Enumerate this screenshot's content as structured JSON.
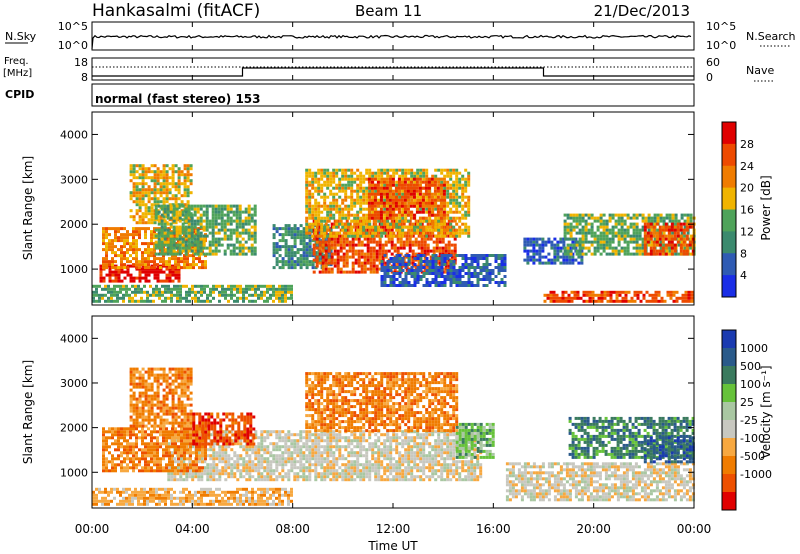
{
  "header": {
    "station": "Hankasalmi (fitACF)",
    "beam": "Beam 11",
    "date": "21/Dec/2013"
  },
  "colors": {
    "power": [
      "#1a2ee6",
      "#2f5bb3",
      "#3b8a6e",
      "#4fa35a",
      "#f0b400",
      "#f07c00",
      "#ee4a00",
      "#e00000"
    ],
    "velocity": [
      "#e00000",
      "#ee5000",
      "#f07c00",
      "#f7a840",
      "#c8c8c0",
      "#a9c7a2",
      "#66c23a",
      "#3a7a5e",
      "#2a5a8a",
      "#1a3ab0"
    ]
  },
  "chart_data": [
    {
      "type": "line",
      "name": "noise",
      "left_label": "N.Sky",
      "right_label": "N.Search",
      "left_ticks": [
        "10^5",
        "10^0"
      ],
      "right_ticks": [
        "10^5",
        "10^0"
      ],
      "series": [
        {
          "name": "N.Sky",
          "style": "solid"
        },
        {
          "name": "N.Search",
          "style": "dotted"
        }
      ],
      "x_range": [
        "00:00",
        "24:00"
      ]
    },
    {
      "type": "line",
      "name": "frequency-nave",
      "left_label_1": "Freq.",
      "left_label_2": "[MHz]",
      "right_label": "Nave",
      "left_ticks": [
        "18",
        "8"
      ],
      "right_ticks": [
        "60",
        "0"
      ],
      "cpid_label": "CPID",
      "cpid_text": "normal (fast stereo) 153",
      "frequency_steps": [
        {
          "from": 0.0,
          "to": 6.0,
          "level": "low"
        },
        {
          "from": 6.0,
          "to": 18.0,
          "level": "high"
        },
        {
          "from": 18.0,
          "to": 24.0,
          "level": "low"
        }
      ]
    },
    {
      "type": "heatmap",
      "name": "power",
      "ylabel": "Slant Range [km]",
      "yticks": [
        "4000",
        "3000",
        "2000",
        "1000"
      ],
      "ylim": [
        200,
        4500
      ],
      "xlim": [
        0,
        24
      ],
      "colorbar_label": "Power [dB]",
      "colorbar_ticks": [
        "28",
        "24",
        "20",
        "16",
        "12",
        "8",
        "4"
      ],
      "regions": [
        {
          "t0": 0.3,
          "t1": 3.5,
          "r0": 700,
          "r1": 1100,
          "level": 7
        },
        {
          "t0": 0.4,
          "t1": 4.5,
          "r0": 1000,
          "r1": 1900,
          "level": 5
        },
        {
          "t0": 1.5,
          "t1": 4.0,
          "r0": 2000,
          "r1": 3300,
          "level": 4
        },
        {
          "t0": 2.5,
          "t1": 6.5,
          "r0": 1300,
          "r1": 2400,
          "level": 3
        },
        {
          "t0": 7.2,
          "t1": 9.5,
          "r0": 1000,
          "r1": 2000,
          "level": 2
        },
        {
          "t0": 8.8,
          "t1": 14.5,
          "r0": 900,
          "r1": 2100,
          "level": 6
        },
        {
          "t0": 8.5,
          "t1": 15.0,
          "r0": 1700,
          "r1": 3200,
          "level": 4
        },
        {
          "t0": 11.0,
          "t1": 14.0,
          "r0": 2100,
          "r1": 3000,
          "level": 6
        },
        {
          "t0": 11.5,
          "t1": 16.5,
          "r0": 600,
          "r1": 1300,
          "level": 1
        },
        {
          "t0": 17.2,
          "t1": 19.5,
          "r0": 1100,
          "r1": 1700,
          "level": 1
        },
        {
          "t0": 18.8,
          "t1": 24.0,
          "r0": 1300,
          "r1": 2200,
          "level": 3
        },
        {
          "t0": 22.0,
          "t1": 24.0,
          "r0": 1300,
          "r1": 2000,
          "level": 6
        },
        {
          "t0": 18.0,
          "t1": 24.0,
          "r0": 250,
          "r1": 500,
          "level": 6
        },
        {
          "t0": 0.0,
          "t1": 8.0,
          "r0": 250,
          "r1": 600,
          "level": 3
        }
      ]
    },
    {
      "type": "heatmap",
      "name": "velocity",
      "ylabel": "Slant Range [km]",
      "yticks": [
        "4000",
        "3000",
        "2000",
        "1000"
      ],
      "ylim": [
        200,
        4500
      ],
      "xlim": [
        0,
        24
      ],
      "xticks": [
        "00:00",
        "04:00",
        "08:00",
        "12:00",
        "16:00",
        "20:00",
        "00:00"
      ],
      "xlabel": "Time UT",
      "colorbar_label": "Velocity [m s⁻¹]",
      "colorbar_ticks": [
        "1000",
        "500",
        "100",
        "25",
        "-25",
        "-100",
        "-500",
        "-1000"
      ],
      "regions": [
        {
          "t0": 3.0,
          "t1": 15.5,
          "r0": 800,
          "r1": 1900,
          "level": 4
        },
        {
          "t0": 0.4,
          "t1": 4.5,
          "r0": 1000,
          "r1": 2000,
          "level": 2
        },
        {
          "t0": 1.5,
          "t1": 4.0,
          "r0": 2000,
          "r1": 3300,
          "level": 2
        },
        {
          "t0": 4.0,
          "t1": 6.5,
          "r0": 1600,
          "r1": 2300,
          "level": 1
        },
        {
          "t0": 8.5,
          "t1": 14.5,
          "r0": 1900,
          "r1": 3200,
          "level": 2
        },
        {
          "t0": 14.5,
          "t1": 16.0,
          "r0": 1300,
          "r1": 2100,
          "level": 6
        },
        {
          "t0": 16.5,
          "t1": 24.0,
          "r0": 350,
          "r1": 1200,
          "level": 4
        },
        {
          "t0": 19.0,
          "t1": 24.0,
          "r0": 1300,
          "r1": 2200,
          "level": 7
        },
        {
          "t0": 22.0,
          "t1": 24.0,
          "r0": 1200,
          "r1": 1800,
          "level": 8
        },
        {
          "t0": 0.0,
          "t1": 8.0,
          "r0": 250,
          "r1": 600,
          "level": 3
        }
      ]
    }
  ]
}
